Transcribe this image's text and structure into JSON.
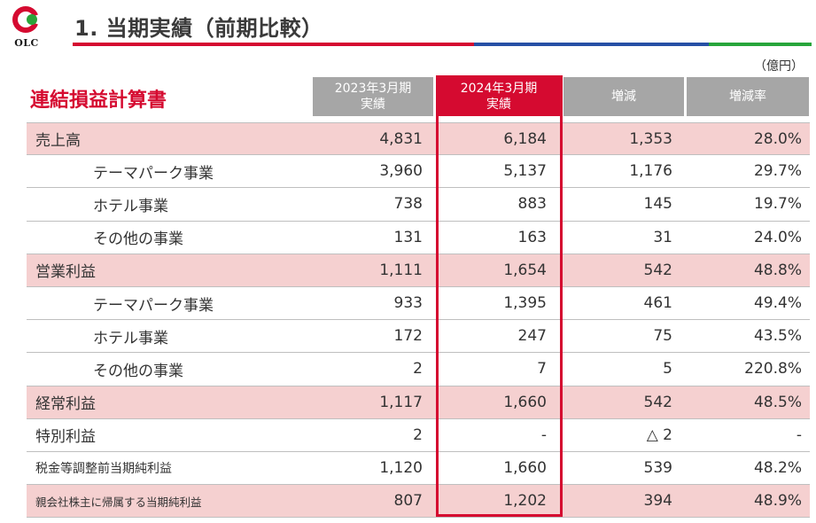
{
  "logo": {
    "text": "OLC",
    "color_red": "#d50a30",
    "color_green": "#2aa53a"
  },
  "page": {
    "title": "1. 当期実績（前期比較）"
  },
  "title_bar_colors": [
    "#d50a30",
    "#2650a5",
    "#27a53b"
  ],
  "table": {
    "title": "連結損益計算書",
    "unit": "（億円）",
    "headers": [
      {
        "line1": "2023年3月期",
        "line2": "実績"
      },
      {
        "line1": "2024年3月期",
        "line2": "実績"
      },
      {
        "line1": "増減",
        "line2": ""
      },
      {
        "line1": "増減率",
        "line2": ""
      }
    ],
    "rows": [
      {
        "label": "売上高",
        "values": [
          "4,831",
          "6,184",
          "1,353",
          "28.0%"
        ]
      },
      {
        "label": "テーマパーク事業",
        "values": [
          "3,960",
          "5,137",
          "1,176",
          "29.7%"
        ]
      },
      {
        "label": "ホテル事業",
        "values": [
          "738",
          "883",
          "145",
          "19.7%"
        ]
      },
      {
        "label": "その他の事業",
        "values": [
          "131",
          "163",
          "31",
          "24.0%"
        ]
      },
      {
        "label": "営業利益",
        "values": [
          "1,111",
          "1,654",
          "542",
          "48.8%"
        ]
      },
      {
        "label": "テーマパーク事業",
        "values": [
          "933",
          "1,395",
          "461",
          "49.4%"
        ]
      },
      {
        "label": "ホテル事業",
        "values": [
          "172",
          "247",
          "75",
          "43.5%"
        ]
      },
      {
        "label": "その他の事業",
        "values": [
          "2",
          "7",
          "5",
          "220.8%"
        ]
      },
      {
        "label": "経常利益",
        "values": [
          "1,117",
          "1,660",
          "542",
          "48.5%"
        ]
      },
      {
        "label": "特別利益",
        "values": [
          "2",
          "-",
          "△ 2",
          "-"
        ]
      },
      {
        "label": "税金等調整前当期純利益",
        "values": [
          "1,120",
          "1,660",
          "539",
          "48.2%"
        ]
      },
      {
        "label": "親会社株主に帰属する当期純利益",
        "values": [
          "807",
          "1,202",
          "394",
          "48.9%"
        ]
      }
    ]
  }
}
